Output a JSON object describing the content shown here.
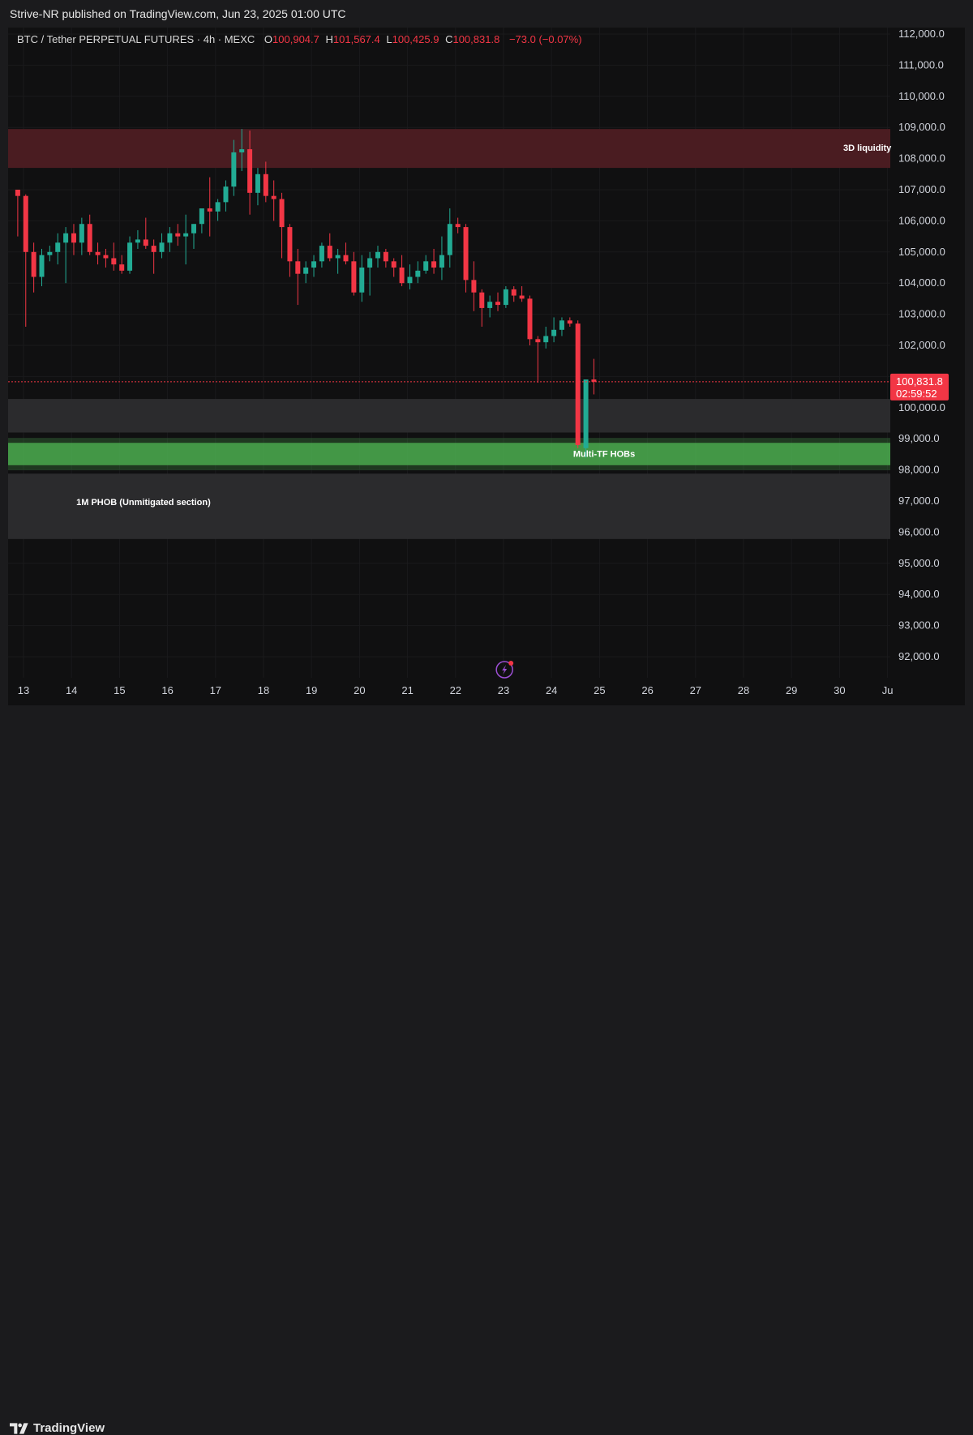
{
  "header": {
    "published_text": "Strive-NR published on TradingView.com, Jun 23, 2025 01:00 UTC"
  },
  "symbol_bar": {
    "symbol_text": "BTC / Tether PERPETUAL FUTURES · 4h · MEXC",
    "open_label": "O",
    "open_value": "100,904.7",
    "high_label": "H",
    "high_value": "101,567.4",
    "low_label": "L",
    "low_value": "100,425.9",
    "close_label": "C",
    "close_value": "100,831.8",
    "change_text": "−73.0 (−0.07%)"
  },
  "price_tag": {
    "price": "100,831.8",
    "countdown": "02:59:52"
  },
  "footer": {
    "brand": "TradingView"
  },
  "colors": {
    "up": "#22ab94",
    "down": "#f23645",
    "zone_red": "#4a1c21",
    "zone_gray": "#2b2b2d",
    "zone_green": "#4caf50",
    "background": "#101011"
  },
  "chart_data": {
    "type": "candlestick",
    "title": "BTC / Tether PERPETUAL FUTURES · 4h · MEXC",
    "timeframe": "4h",
    "ylim": [
      91300,
      112200
    ],
    "y_ticks": [
      92000,
      93000,
      94000,
      95000,
      96000,
      97000,
      98000,
      99000,
      100000,
      101000,
      102000,
      103000,
      104000,
      105000,
      106000,
      107000,
      108000,
      109000,
      110000,
      111000,
      112000
    ],
    "y_tick_labels": [
      "92,000.0",
      "93,000.0",
      "94,000.0",
      "95,000.0",
      "96,000.0",
      "97,000.0",
      "98,000.0",
      "99,000.0",
      "100,000.0",
      "101,000.0",
      "102,000.0",
      "103,000.0",
      "104,000.0",
      "105,000.0",
      "106,000.0",
      "107,000.0",
      "108,000.0",
      "109,000.0",
      "110,000.0",
      "111,000.0",
      "112,000.0"
    ],
    "x_range_days": [
      12.95,
      31.0
    ],
    "x_ticks": [
      {
        "day": 13,
        "label": "13"
      },
      {
        "day": 14,
        "label": "14"
      },
      {
        "day": 15,
        "label": "15"
      },
      {
        "day": 16,
        "label": "16"
      },
      {
        "day": 17,
        "label": "17"
      },
      {
        "day": 18,
        "label": "18"
      },
      {
        "day": 19,
        "label": "19"
      },
      {
        "day": 20,
        "label": "20"
      },
      {
        "day": 21,
        "label": "21"
      },
      {
        "day": 22,
        "label": "22"
      },
      {
        "day": 23,
        "label": "23"
      },
      {
        "day": 24,
        "label": "24"
      },
      {
        "day": 25,
        "label": "25"
      },
      {
        "day": 26,
        "label": "26"
      },
      {
        "day": 27,
        "label": "27"
      },
      {
        "day": 28,
        "label": "28"
      },
      {
        "day": 29,
        "label": "29"
      },
      {
        "day": 30,
        "label": "30"
      },
      {
        "day": 31,
        "label": "Ju"
      }
    ],
    "last_price": 100831.8,
    "zones": [
      {
        "label": "3D liquidity",
        "from": 107700,
        "to": 108950,
        "color": "#4a1c21",
        "label_price": 108350,
        "label_align": "right"
      },
      {
        "label": "",
        "from": 99200,
        "to": 100280,
        "color": "#2b2b2d"
      },
      {
        "label": "Multi-TF HOBs",
        "from": 98150,
        "to": 98870,
        "color": "#4caf50",
        "label_price": 98520,
        "label_day": 24.45
      },
      {
        "label": "1M PHOB (Unmitigated section)",
        "from": 95780,
        "to": 97880,
        "color": "#2b2b2d",
        "label_price": 96980,
        "label_day": 14.1
      }
    ],
    "candle_time_step_days": 0.1667,
    "candle_start_day": 12.88,
    "candles_ohlc": [
      [
        107000,
        107000,
        105500,
        106800
      ],
      [
        106800,
        106850,
        102600,
        105000
      ],
      [
        105000,
        105300,
        103700,
        104200
      ],
      [
        104200,
        105100,
        103900,
        104900
      ],
      [
        104900,
        105200,
        104700,
        105000
      ],
      [
        105000,
        105600,
        104600,
        105300
      ],
      [
        105300,
        105800,
        104000,
        105600
      ],
      [
        105600,
        105900,
        104900,
        105300
      ],
      [
        105300,
        106100,
        104900,
        105900
      ],
      [
        105900,
        106200,
        104900,
        105000
      ],
      [
        105000,
        105300,
        104600,
        104900
      ],
      [
        104900,
        105100,
        104500,
        104800
      ],
      [
        104800,
        105300,
        104400,
        104600
      ],
      [
        104600,
        104900,
        104300,
        104400
      ],
      [
        104400,
        105500,
        104300,
        105300
      ],
      [
        105300,
        105700,
        105100,
        105400
      ],
      [
        105400,
        106100,
        105100,
        105200
      ],
      [
        105200,
        105400,
        104300,
        105000
      ],
      [
        105000,
        105600,
        104800,
        105300
      ],
      [
        105300,
        105800,
        105000,
        105600
      ],
      [
        105600,
        105900,
        105200,
        105500
      ],
      [
        105500,
        106200,
        104600,
        105600
      ],
      [
        105600,
        105900,
        105100,
        105900
      ],
      [
        105900,
        106300,
        105600,
        106400
      ],
      [
        106400,
        107400,
        105500,
        106300
      ],
      [
        106300,
        106700,
        106000,
        106600
      ],
      [
        106600,
        107300,
        106300,
        107100
      ],
      [
        107100,
        108600,
        106800,
        108200
      ],
      [
        108200,
        108950,
        107600,
        108300
      ],
      [
        108300,
        108900,
        106200,
        106900
      ],
      [
        106900,
        107700,
        106500,
        107500
      ],
      [
        107500,
        107900,
        106600,
        106800
      ],
      [
        106800,
        107300,
        106000,
        106700
      ],
      [
        106700,
        106900,
        104800,
        105800
      ],
      [
        105800,
        105900,
        104200,
        104700
      ],
      [
        104700,
        105100,
        103300,
        104300
      ],
      [
        104300,
        104700,
        104000,
        104500
      ],
      [
        104500,
        104900,
        104200,
        104700
      ],
      [
        104700,
        105300,
        104500,
        105200
      ],
      [
        105200,
        105600,
        104700,
        104800
      ],
      [
        104800,
        105100,
        104300,
        104900
      ],
      [
        104900,
        105300,
        104600,
        104700
      ],
      [
        104700,
        105000,
        103600,
        103700
      ],
      [
        103700,
        104900,
        103400,
        104500
      ],
      [
        104500,
        105000,
        103600,
        104800
      ],
      [
        104800,
        105200,
        104500,
        105000
      ],
      [
        105000,
        105100,
        104500,
        104700
      ],
      [
        104700,
        104800,
        104200,
        104500
      ],
      [
        104500,
        104900,
        103900,
        104000
      ],
      [
        104000,
        104600,
        103800,
        104200
      ],
      [
        104200,
        104700,
        104000,
        104400
      ],
      [
        104400,
        104900,
        104300,
        104700
      ],
      [
        104700,
        105100,
        104300,
        104500
      ],
      [
        104500,
        105500,
        104100,
        104900
      ],
      [
        104900,
        106400,
        104500,
        105900
      ],
      [
        105900,
        106100,
        105600,
        105800
      ],
      [
        105800,
        105900,
        103700,
        104100
      ],
      [
        104100,
        104700,
        103100,
        103700
      ],
      [
        103700,
        103800,
        102600,
        103200
      ],
      [
        103200,
        103600,
        102900,
        103400
      ],
      [
        103400,
        103700,
        103100,
        103300
      ],
      [
        103300,
        103900,
        103200,
        103800
      ],
      [
        103800,
        103900,
        103400,
        103600
      ],
      [
        103600,
        103900,
        103400,
        103500
      ],
      [
        103500,
        103600,
        102000,
        102200
      ],
      [
        102200,
        102300,
        100800,
        102100
      ],
      [
        102100,
        102600,
        101900,
        102300
      ],
      [
        102300,
        102900,
        102100,
        102500
      ],
      [
        102500,
        102900,
        102300,
        102800
      ],
      [
        102800,
        102900,
        102600,
        102700
      ],
      [
        102700,
        102800,
        98700,
        98800
      ],
      [
        98700,
        100800,
        98400,
        100904.7
      ],
      [
        100904.7,
        101567.4,
        100425.9,
        100831.8
      ]
    ]
  }
}
